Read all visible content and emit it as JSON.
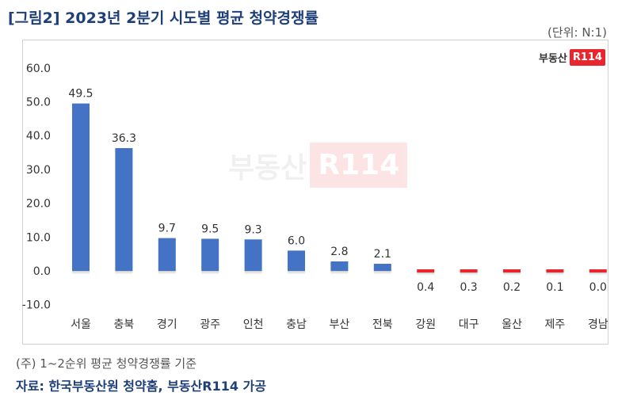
{
  "header": {
    "title": "[그림2] 2023년 2분기 시도별 평균 청약경쟁률",
    "unit": "(단위: N:1)"
  },
  "logo": {
    "text": "부동산",
    "badge": "R114"
  },
  "watermark": {
    "text": "부동산",
    "badge": "R114"
  },
  "footer": {
    "note": "(주) 1~2순위 평균 청약경쟁률 기준",
    "source": "자료: 한국부동산원 청약홈, 부동산R114 가공"
  },
  "colors": {
    "positive": "#4472c4",
    "negative": "#e8262e",
    "title": "#1f3f7a"
  },
  "chart_data": {
    "type": "bar",
    "title": "[그림2] 2023년 2분기 시도별 평균 청약경쟁률",
    "xlabel": "",
    "ylabel": "",
    "ylim": [
      -10,
      60
    ],
    "yticks": [
      "60.0",
      "50.0",
      "40.0",
      "30.0",
      "20.0",
      "10.0",
      "0.0",
      "-10.0"
    ],
    "grid": false,
    "categories": [
      "서울",
      "충북",
      "경기",
      "광주",
      "인천",
      "충남",
      "부산",
      "전북",
      "강원",
      "대구",
      "울산",
      "제주",
      "경남"
    ],
    "values": [
      49.5,
      36.3,
      9.7,
      9.5,
      9.3,
      6.0,
      2.8,
      2.1,
      0.4,
      0.3,
      0.2,
      0.1,
      0.0
    ],
    "labels": [
      "49.5",
      "36.3",
      "9.7",
      "9.5",
      "9.3",
      "6.0",
      "2.8",
      "2.1",
      "0.4",
      "0.3",
      "0.2",
      "0.1",
      "0.0"
    ],
    "negative_bar_categories": [
      "강원",
      "대구",
      "울산",
      "제주",
      "경남"
    ]
  }
}
